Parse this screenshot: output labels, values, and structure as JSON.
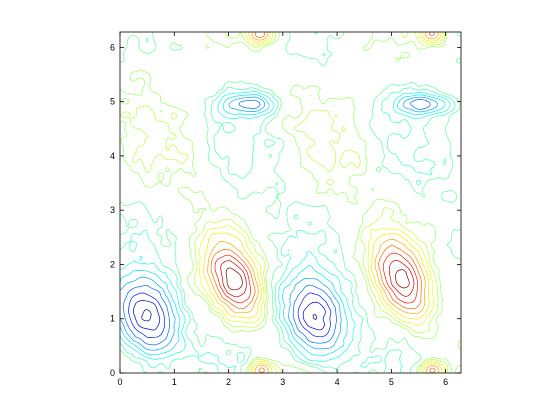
{
  "chart_data": {
    "type": "contour",
    "title": "",
    "xlabel": "",
    "ylabel": "",
    "xlim": [
      0,
      6.2832
    ],
    "ylim": [
      0,
      6.2832
    ],
    "xticks": [
      0,
      1,
      2,
      3,
      4,
      5,
      6
    ],
    "yticks": [
      0,
      1,
      2,
      3,
      4,
      5,
      6
    ],
    "xtick_labels": [
      "0",
      "1",
      "2",
      "3",
      "4",
      "5",
      "6"
    ],
    "ytick_labels": [
      "0",
      "1",
      "2",
      "3",
      "4",
      "5",
      "6"
    ],
    "grid": false,
    "colormap": "jet",
    "colors": [
      "#00008f",
      "#0000ff",
      "#0080ff",
      "#00ffff",
      "#80ff80",
      "#ffff00",
      "#ff8000",
      "#ff0000",
      "#800000"
    ],
    "levels": [
      -1.0,
      -0.85,
      -0.7,
      -0.55,
      -0.42,
      -0.3,
      -0.2,
      -0.12,
      -0.06,
      0.06,
      0.12,
      0.2,
      0.3,
      0.42,
      0.55,
      0.7,
      0.85,
      1.0
    ],
    "features": [
      {
        "kind": "minimum",
        "x": 0.5,
        "y": 1.0
      },
      {
        "kind": "minimum",
        "x": 3.6,
        "y": 1.0
      },
      {
        "kind": "maximum",
        "x": 2.1,
        "y": 1.7
      },
      {
        "kind": "maximum",
        "x": 5.2,
        "y": 1.7
      },
      {
        "kind": "minimum",
        "x": 2.4,
        "y": 4.95
      },
      {
        "kind": "minimum",
        "x": 5.6,
        "y": 4.95
      },
      {
        "kind": "maximum",
        "x": 2.6,
        "y": 0.05
      },
      {
        "kind": "maximum",
        "x": 5.75,
        "y": 0.05
      },
      {
        "kind": "maximum",
        "x": 2.6,
        "y": 6.25
      },
      {
        "kind": "maximum",
        "x": 5.75,
        "y": 6.25
      }
    ]
  }
}
